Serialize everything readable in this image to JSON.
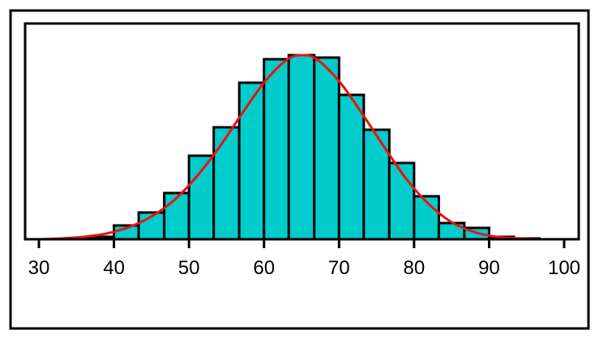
{
  "chart_data": {
    "type": "bar",
    "title": "",
    "xlabel": "",
    "ylabel": "",
    "xlim": [
      30,
      100
    ],
    "ylim": [
      0,
      230
    ],
    "grid": false,
    "legend": "none",
    "x_ticks": [
      "30",
      "40",
      "50",
      "60",
      "70",
      "80",
      "90",
      "100"
    ],
    "x_tick_values": [
      30,
      40,
      50,
      60,
      70,
      80,
      90,
      100
    ],
    "bin_edges": [
      33.3,
      36.7,
      40,
      43.3,
      46.7,
      50,
      53.3,
      56.7,
      60,
      63.3,
      66.7,
      70,
      73.3,
      76.7,
      80,
      83.3,
      86.7,
      90,
      93.3,
      96.7
    ],
    "values": [
      1,
      3,
      17,
      33,
      57,
      103,
      138,
      193,
      222,
      227,
      224,
      178,
      135,
      94,
      53,
      20,
      14,
      3,
      1
    ],
    "curve": {
      "x": [
        30,
        33,
        36,
        39,
        42,
        45,
        48,
        51,
        54,
        57,
        60,
        63,
        65,
        67,
        70,
        73,
        76,
        79,
        82,
        85,
        88,
        91,
        94,
        97
      ],
      "y": [
        0,
        1,
        3,
        7,
        15,
        28,
        48,
        77,
        113,
        154,
        193,
        221,
        227,
        222,
        195,
        156,
        114,
        74,
        43,
        21,
        9,
        3,
        1,
        0
      ]
    },
    "colors": {
      "bar_fill": "#00cccc",
      "bar_stroke": "#000000",
      "curve": "#ee1111",
      "frame": "#000000"
    }
  }
}
